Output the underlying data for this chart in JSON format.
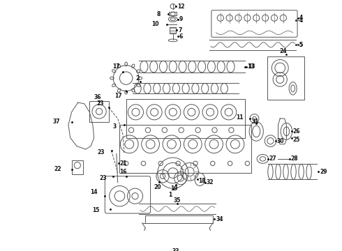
{
  "bg_color": "#ffffff",
  "line_color": "#555555",
  "fig_width": 4.9,
  "fig_height": 3.6,
  "dpi": 100
}
